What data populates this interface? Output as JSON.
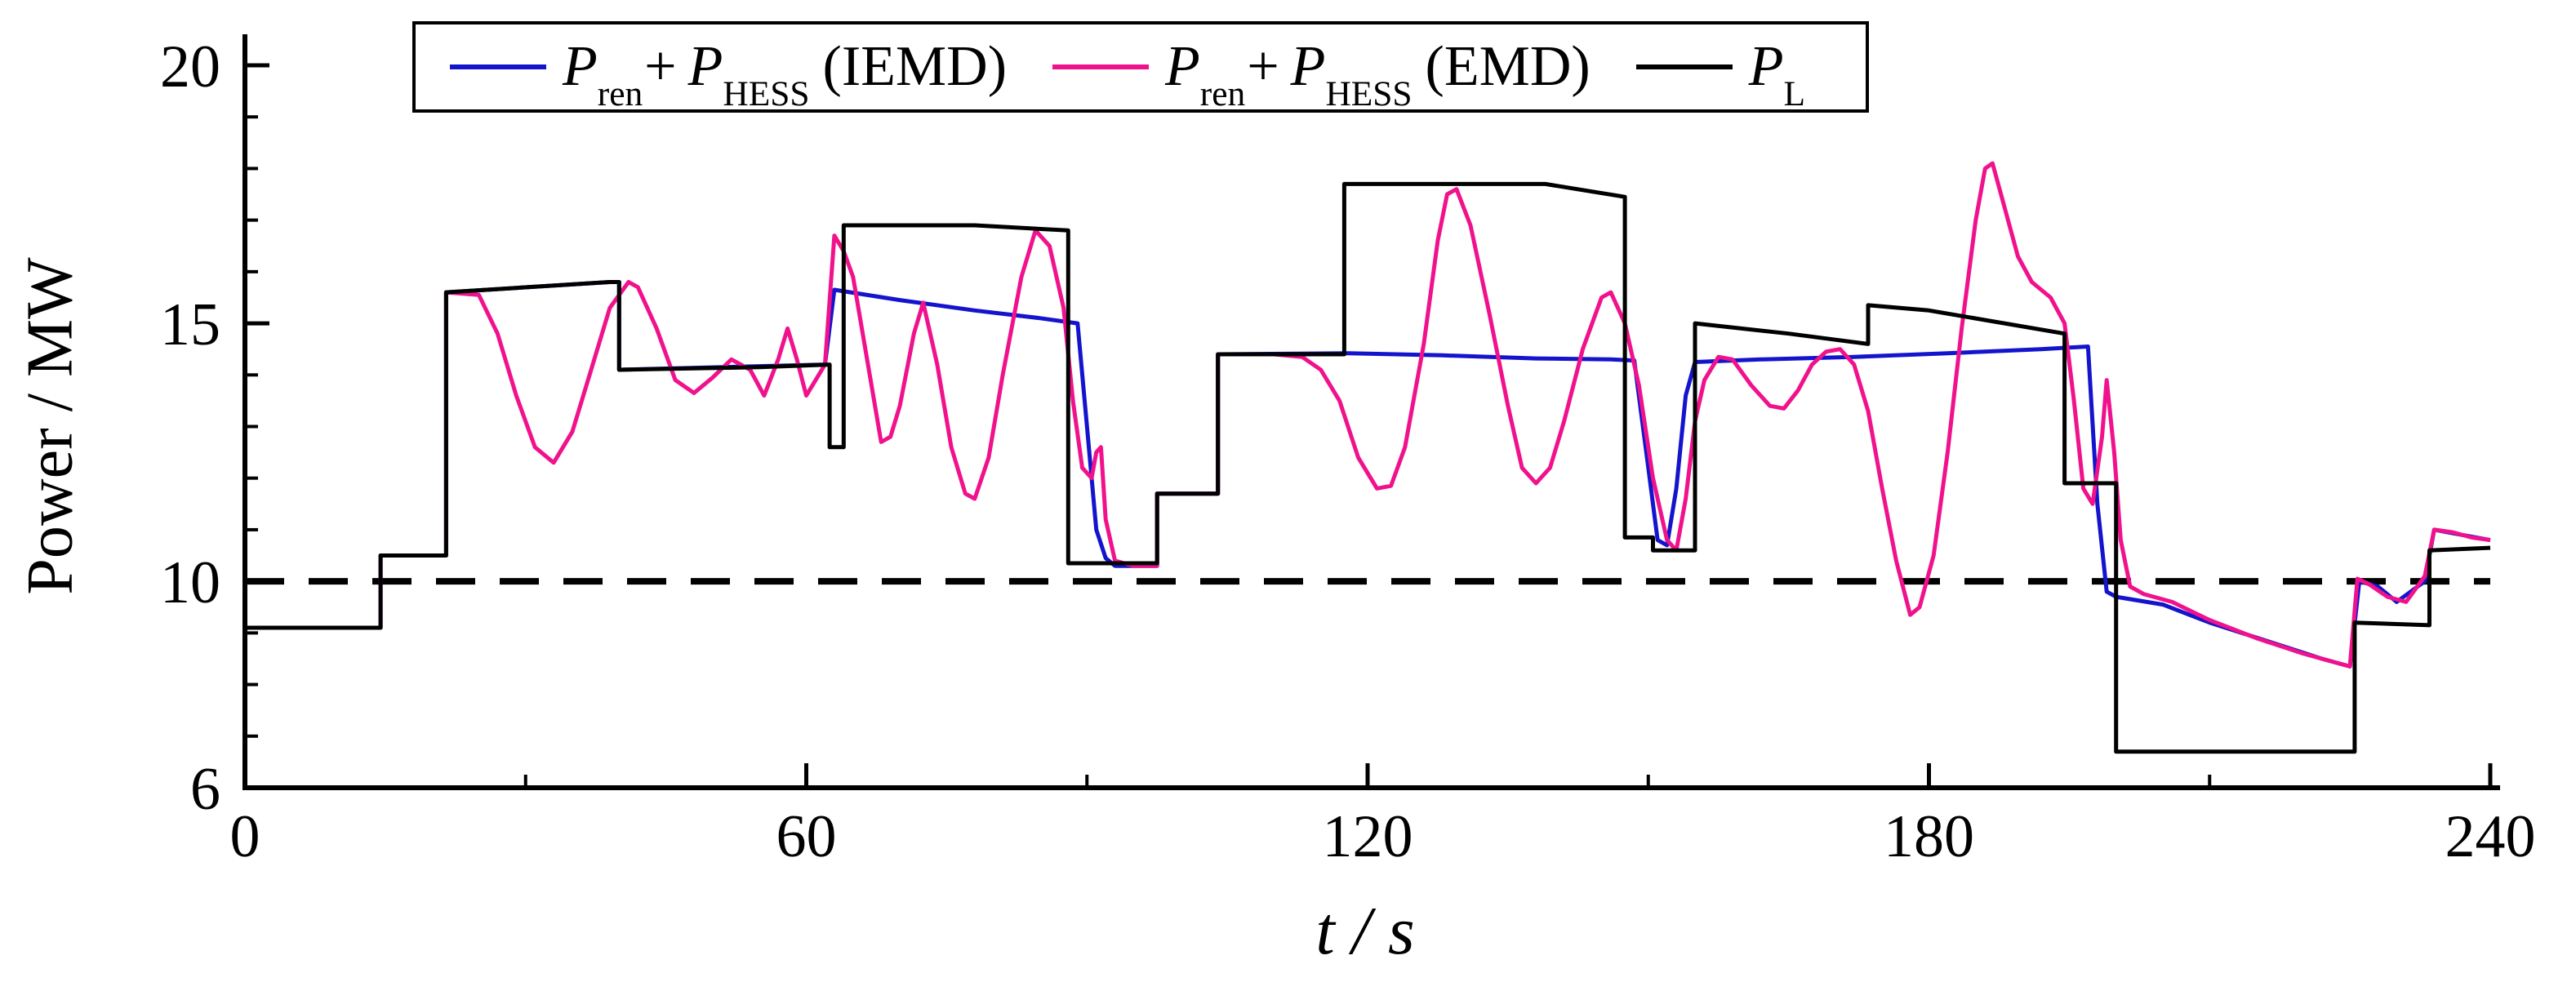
{
  "figure": {
    "xlabel": "t / s",
    "ylabel": "Power / MW"
  },
  "legend": {
    "entries": [
      {
        "sym1": "P",
        "sub1": "ren",
        "mid": "+",
        "sym2": "P",
        "sub2": "HESS",
        "tail": "(IEMD)",
        "color": "#1414cd"
      },
      {
        "sym1": "P",
        "sub1": "ren",
        "mid": "+",
        "sym2": "P",
        "sub2": "HESS",
        "tail": "(EMD)",
        "color": "#f0128c"
      },
      {
        "sym1": "P",
        "sub1": "L",
        "color": "#000000"
      }
    ]
  },
  "chart_data": {
    "type": "line",
    "title": "",
    "xlabel": "t / s",
    "ylabel": "Power / MW",
    "xlim": [
      0,
      240
    ],
    "ylim": [
      6,
      20
    ],
    "x_ticks": {
      "major": [
        0,
        60,
        120,
        180,
        240
      ],
      "minor": [
        30,
        90,
        150,
        210
      ]
    },
    "y_ticks": {
      "major": [
        6,
        10,
        15,
        20
      ],
      "minor": [
        7,
        8,
        9,
        11,
        12,
        13,
        14,
        16,
        17,
        18,
        19
      ]
    },
    "grid": false,
    "legend_position": "top",
    "reference_line": {
      "y": 10,
      "style": "dashed",
      "color": "#000000"
    },
    "series": [
      {
        "name": "Pren + PHESS (IEMD)",
        "id": "iemd",
        "color": "#1414cd",
        "width": 5,
        "points": [
          [
            0,
            9.1
          ],
          [
            14.5,
            9.1
          ],
          [
            14.5,
            10.5
          ],
          [
            21.5,
            10.5
          ],
          [
            21.5,
            15.6
          ],
          [
            39,
            15.8
          ],
          [
            40,
            15.8
          ],
          [
            40,
            14.1
          ],
          [
            62,
            14.2
          ],
          [
            63,
            15.65
          ],
          [
            70,
            15.45
          ],
          [
            78,
            15.25
          ],
          [
            85,
            15.1
          ],
          [
            89,
            15.0
          ],
          [
            90,
            13.0
          ],
          [
            91,
            11.0
          ],
          [
            92,
            10.45
          ],
          [
            93,
            10.3
          ],
          [
            97.5,
            10.3
          ],
          [
            97.5,
            11.7
          ],
          [
            104,
            11.7
          ],
          [
            104,
            14.4
          ],
          [
            118,
            14.42
          ],
          [
            128,
            14.38
          ],
          [
            138,
            14.32
          ],
          [
            146,
            14.3
          ],
          [
            148.5,
            14.28
          ],
          [
            150,
            12.2
          ],
          [
            151,
            10.8
          ],
          [
            152,
            10.7
          ],
          [
            153,
            11.8
          ],
          [
            154,
            13.6
          ],
          [
            155,
            14.25
          ],
          [
            162,
            14.3
          ],
          [
            172,
            14.35
          ],
          [
            182,
            14.42
          ],
          [
            192,
            14.5
          ],
          [
            197,
            14.55
          ],
          [
            198,
            11.5
          ],
          [
            199,
            9.8
          ],
          [
            200,
            9.7
          ],
          [
            205,
            9.55
          ],
          [
            210,
            9.2
          ],
          [
            216,
            8.85
          ],
          [
            222,
            8.5
          ],
          [
            225,
            8.35
          ],
          [
            226,
            10.0
          ],
          [
            228,
            9.9
          ],
          [
            230,
            9.6
          ],
          [
            233,
            10.0
          ],
          [
            234,
            11.0
          ],
          [
            237,
            10.9
          ],
          [
            240,
            10.8
          ]
        ]
      },
      {
        "name": "Pren + PHESS (EMD)",
        "id": "emd",
        "color": "#f0128c",
        "width": 5,
        "points": [
          [
            0,
            9.1
          ],
          [
            14.5,
            9.1
          ],
          [
            14.5,
            10.5
          ],
          [
            21.5,
            10.5
          ],
          [
            21.5,
            15.6
          ],
          [
            25,
            15.55
          ],
          [
            27,
            14.8
          ],
          [
            29,
            13.6
          ],
          [
            31,
            12.6
          ],
          [
            33,
            12.3
          ],
          [
            35,
            12.9
          ],
          [
            37,
            14.1
          ],
          [
            39,
            15.3
          ],
          [
            41,
            15.8
          ],
          [
            42,
            15.7
          ],
          [
            44,
            14.9
          ],
          [
            46,
            13.9
          ],
          [
            48,
            13.65
          ],
          [
            50,
            13.95
          ],
          [
            52,
            14.3
          ],
          [
            54,
            14.1
          ],
          [
            55.5,
            13.6
          ],
          [
            57,
            14.3
          ],
          [
            58,
            14.9
          ],
          [
            59,
            14.3
          ],
          [
            60,
            13.6
          ],
          [
            61,
            13.9
          ],
          [
            62,
            14.2
          ],
          [
            63,
            16.7
          ],
          [
            64,
            16.4
          ],
          [
            65,
            15.9
          ],
          [
            66.5,
            14.3
          ],
          [
            68,
            12.7
          ],
          [
            69,
            12.8
          ],
          [
            70,
            13.4
          ],
          [
            71.5,
            14.8
          ],
          [
            72.5,
            15.4
          ],
          [
            74,
            14.2
          ],
          [
            75.5,
            12.6
          ],
          [
            77,
            11.7
          ],
          [
            78,
            11.6
          ],
          [
            79.5,
            12.4
          ],
          [
            81,
            14.0
          ],
          [
            83,
            15.9
          ],
          [
            84.5,
            16.8
          ],
          [
            86,
            16.5
          ],
          [
            87.5,
            15.3
          ],
          [
            88.5,
            13.5
          ],
          [
            89.5,
            12.2
          ],
          [
            90.5,
            12.0
          ],
          [
            91,
            12.5
          ],
          [
            91.5,
            12.6
          ],
          [
            92,
            11.2
          ],
          [
            93,
            10.4
          ],
          [
            95,
            10.3
          ],
          [
            97.5,
            10.3
          ],
          [
            97.5,
            11.7
          ],
          [
            104,
            11.7
          ],
          [
            104,
            14.4
          ],
          [
            110,
            14.4
          ],
          [
            113,
            14.35
          ],
          [
            115,
            14.1
          ],
          [
            117,
            13.5
          ],
          [
            119,
            12.4
          ],
          [
            121,
            11.8
          ],
          [
            122.5,
            11.85
          ],
          [
            124,
            12.6
          ],
          [
            126,
            14.6
          ],
          [
            127.5,
            16.6
          ],
          [
            128.5,
            17.5
          ],
          [
            129.5,
            17.6
          ],
          [
            131,
            16.9
          ],
          [
            133,
            15.2
          ],
          [
            135,
            13.4
          ],
          [
            136.5,
            12.2
          ],
          [
            138,
            11.9
          ],
          [
            139.5,
            12.2
          ],
          [
            141,
            13.1
          ],
          [
            143,
            14.5
          ],
          [
            145,
            15.5
          ],
          [
            146,
            15.6
          ],
          [
            147.5,
            15.0
          ],
          [
            149,
            13.8
          ],
          [
            150.5,
            12.0
          ],
          [
            152,
            10.8
          ],
          [
            153,
            10.6
          ],
          [
            154,
            11.6
          ],
          [
            155,
            13.1
          ],
          [
            156,
            13.9
          ],
          [
            157.5,
            14.35
          ],
          [
            159,
            14.3
          ],
          [
            161,
            13.8
          ],
          [
            163,
            13.4
          ],
          [
            164.5,
            13.35
          ],
          [
            166,
            13.7
          ],
          [
            167.5,
            14.2
          ],
          [
            169,
            14.45
          ],
          [
            170.5,
            14.5
          ],
          [
            172,
            14.2
          ],
          [
            173.5,
            13.3
          ],
          [
            175,
            11.8
          ],
          [
            176.5,
            10.4
          ],
          [
            178,
            9.35
          ],
          [
            179,
            9.5
          ],
          [
            180.5,
            10.5
          ],
          [
            182,
            12.5
          ],
          [
            183.5,
            14.9
          ],
          [
            185,
            17.0
          ],
          [
            186,
            18.0
          ],
          [
            186.8,
            18.1
          ],
          [
            188,
            17.3
          ],
          [
            189.5,
            16.3
          ],
          [
            191,
            15.8
          ],
          [
            193,
            15.5
          ],
          [
            194.5,
            15.0
          ],
          [
            195.5,
            13.5
          ],
          [
            196.5,
            11.8
          ],
          [
            197.5,
            11.5
          ],
          [
            198.5,
            12.8
          ],
          [
            199,
            13.9
          ],
          [
            199.8,
            12.5
          ],
          [
            200.5,
            10.8
          ],
          [
            201.5,
            9.9
          ],
          [
            203,
            9.75
          ],
          [
            206,
            9.6
          ],
          [
            210,
            9.25
          ],
          [
            215,
            8.9
          ],
          [
            220,
            8.6
          ],
          [
            225,
            8.35
          ],
          [
            225.8,
            10.05
          ],
          [
            227,
            9.95
          ],
          [
            229,
            9.7
          ],
          [
            231,
            9.6
          ],
          [
            233,
            10.1
          ],
          [
            234,
            11.0
          ],
          [
            236,
            10.95
          ],
          [
            238,
            10.85
          ],
          [
            240,
            10.8
          ]
        ]
      },
      {
        "name": "PL",
        "id": "pl",
        "color": "#000000",
        "width": 5,
        "points": [
          [
            0,
            9.1
          ],
          [
            14.5,
            9.1
          ],
          [
            14.5,
            10.5
          ],
          [
            21.5,
            10.5
          ],
          [
            21.5,
            15.6
          ],
          [
            39,
            15.8
          ],
          [
            40,
            15.8
          ],
          [
            40,
            14.1
          ],
          [
            55,
            14.15
          ],
          [
            62.5,
            14.2
          ],
          [
            62.5,
            12.6
          ],
          [
            64,
            12.6
          ],
          [
            64,
            16.9
          ],
          [
            78,
            16.9
          ],
          [
            88,
            16.8
          ],
          [
            88,
            10.35
          ],
          [
            97.5,
            10.35
          ],
          [
            97.5,
            11.7
          ],
          [
            104,
            11.7
          ],
          [
            104,
            14.4
          ],
          [
            117.5,
            14.4
          ],
          [
            117.5,
            17.7
          ],
          [
            139,
            17.7
          ],
          [
            147.5,
            17.45
          ],
          [
            147.5,
            10.85
          ],
          [
            150.5,
            10.85
          ],
          [
            150.5,
            10.6
          ],
          [
            155,
            10.6
          ],
          [
            155,
            15.0
          ],
          [
            165,
            14.8
          ],
          [
            173.5,
            14.6
          ],
          [
            173.5,
            15.35
          ],
          [
            180,
            15.25
          ],
          [
            194.5,
            14.8
          ],
          [
            194.5,
            11.9
          ],
          [
            200,
            11.9
          ],
          [
            200,
            6.7
          ],
          [
            225.5,
            6.7
          ],
          [
            225.5,
            9.2
          ],
          [
            233.5,
            9.15
          ],
          [
            233.5,
            10.6
          ],
          [
            240,
            10.65
          ]
        ]
      }
    ]
  }
}
